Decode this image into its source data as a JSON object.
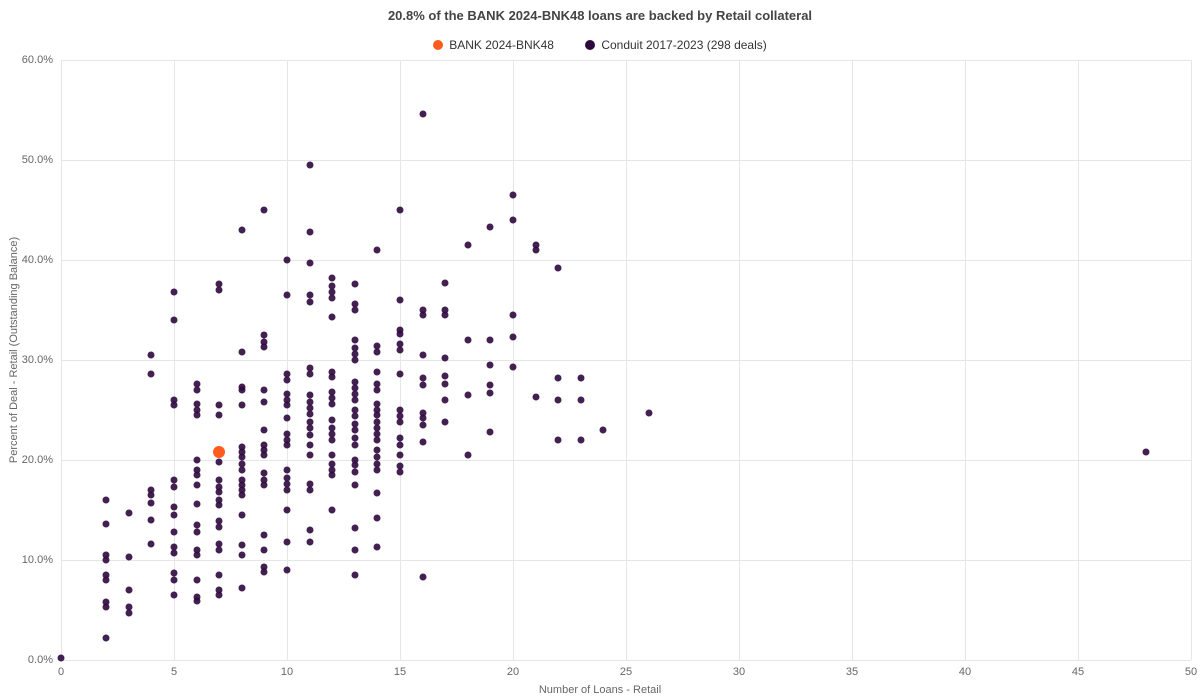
{
  "chart": {
    "type": "scatter",
    "title": "20.8% of the BANK 2024-BNK48 loans are backed by Retail collateral",
    "title_fontsize": 13,
    "background_color": "#ffffff",
    "grid_color": "#e6e6e6",
    "axis_line_color": "#bbbbbb",
    "tick_font_color": "#666666",
    "tick_fontsize": 11,
    "x_axis": {
      "label": "Number of Loans - Retail",
      "min": 0,
      "max": 50,
      "tick_step": 5
    },
    "y_axis": {
      "label": "Percent of Deal - Retail (Outstanding Balance)",
      "min": 0,
      "max": 60,
      "tick_step": 10,
      "tick_suffix": "%",
      "tick_decimals": 1
    },
    "legend": {
      "position": "top-center",
      "items": [
        {
          "label": "BANK 2024-BNK48",
          "color": "#ff5b1f",
          "marker": "circle"
        },
        {
          "label": "Conduit 2017-2023 (298 deals)",
          "color": "#2e093e",
          "marker": "circle"
        }
      ]
    },
    "series": [
      {
        "name": "Conduit 2017-2023 (298 deals)",
        "color": "#2e093e",
        "marker_size": 7,
        "marker_opacity": 0.9,
        "points": [
          [
            0,
            0.2
          ],
          [
            2,
            2.2
          ],
          [
            2,
            5.3
          ],
          [
            2,
            5.8
          ],
          [
            2,
            8.0
          ],
          [
            2,
            8.5
          ],
          [
            2,
            10.0
          ],
          [
            2,
            10.5
          ],
          [
            2,
            13.6
          ],
          [
            2,
            16.0
          ],
          [
            3,
            4.7
          ],
          [
            3,
            5.3
          ],
          [
            3,
            7.0
          ],
          [
            3,
            10.3
          ],
          [
            3,
            14.7
          ],
          [
            4,
            11.6
          ],
          [
            4,
            14.0
          ],
          [
            4,
            15.7
          ],
          [
            4,
            16.5
          ],
          [
            4,
            17.0
          ],
          [
            4,
            28.6
          ],
          [
            4,
            30.5
          ],
          [
            5,
            6.5
          ],
          [
            5,
            8.0
          ],
          [
            5,
            8.7
          ],
          [
            5,
            10.7
          ],
          [
            5,
            11.3
          ],
          [
            5,
            12.8
          ],
          [
            5,
            14.5
          ],
          [
            5,
            15.3
          ],
          [
            5,
            17.3
          ],
          [
            5,
            18.0
          ],
          [
            5,
            25.5
          ],
          [
            5,
            26.0
          ],
          [
            5,
            34.0
          ],
          [
            5,
            36.8
          ],
          [
            6,
            5.9
          ],
          [
            6,
            6.3
          ],
          [
            6,
            8.0
          ],
          [
            6,
            10.5
          ],
          [
            6,
            11.0
          ],
          [
            6,
            12.8
          ],
          [
            6,
            13.5
          ],
          [
            6,
            15.6
          ],
          [
            6,
            17.5
          ],
          [
            6,
            18.5
          ],
          [
            6,
            19.0
          ],
          [
            6,
            20.0
          ],
          [
            6,
            24.5
          ],
          [
            6,
            25.0
          ],
          [
            6,
            25.6
          ],
          [
            6,
            27.0
          ],
          [
            6,
            27.6
          ],
          [
            7,
            6.5
          ],
          [
            7,
            7.0
          ],
          [
            7,
            8.5
          ],
          [
            7,
            11.0
          ],
          [
            7,
            11.6
          ],
          [
            7,
            13.3
          ],
          [
            7,
            13.9
          ],
          [
            7,
            15.5
          ],
          [
            7,
            16.0
          ],
          [
            7,
            16.8
          ],
          [
            7,
            17.3
          ],
          [
            7,
            18.0
          ],
          [
            7,
            19.8
          ],
          [
            7,
            21.0
          ],
          [
            7,
            24.5
          ],
          [
            7,
            25.5
          ],
          [
            7,
            37.0
          ],
          [
            7,
            37.6
          ],
          [
            8,
            7.2
          ],
          [
            8,
            10.5
          ],
          [
            8,
            11.5
          ],
          [
            8,
            14.5
          ],
          [
            8,
            16.5
          ],
          [
            8,
            17.0
          ],
          [
            8,
            17.5
          ],
          [
            8,
            18.0
          ],
          [
            8,
            19.0
          ],
          [
            8,
            19.6
          ],
          [
            8,
            20.3
          ],
          [
            8,
            20.8
          ],
          [
            8,
            21.3
          ],
          [
            8,
            25.5
          ],
          [
            8,
            27.0
          ],
          [
            8,
            27.3
          ],
          [
            8,
            30.8
          ],
          [
            8,
            43.0
          ],
          [
            9,
            8.8
          ],
          [
            9,
            9.3
          ],
          [
            9,
            11.0
          ],
          [
            9,
            12.5
          ],
          [
            9,
            17.5
          ],
          [
            9,
            18.0
          ],
          [
            9,
            18.7
          ],
          [
            9,
            20.5
          ],
          [
            9,
            21.0
          ],
          [
            9,
            21.5
          ],
          [
            9,
            23.0
          ],
          [
            9,
            25.8
          ],
          [
            9,
            27.0
          ],
          [
            9,
            31.3
          ],
          [
            9,
            31.8
          ],
          [
            9,
            32.5
          ],
          [
            9,
            45.0
          ],
          [
            10,
            9.0
          ],
          [
            10,
            11.8
          ],
          [
            10,
            15.0
          ],
          [
            10,
            17.0
          ],
          [
            10,
            17.6
          ],
          [
            10,
            18.2
          ],
          [
            10,
            19.0
          ],
          [
            10,
            21.5
          ],
          [
            10,
            22.0
          ],
          [
            10,
            22.6
          ],
          [
            10,
            24.2
          ],
          [
            10,
            25.5
          ],
          [
            10,
            26.0
          ],
          [
            10,
            26.6
          ],
          [
            10,
            28.0
          ],
          [
            10,
            28.6
          ],
          [
            10,
            36.5
          ],
          [
            10,
            40.0
          ],
          [
            11,
            11.8
          ],
          [
            11,
            13.0
          ],
          [
            11,
            17.0
          ],
          [
            11,
            17.6
          ],
          [
            11,
            20.5
          ],
          [
            11,
            21.5
          ],
          [
            11,
            22.5
          ],
          [
            11,
            23.2
          ],
          [
            11,
            23.8
          ],
          [
            11,
            24.6
          ],
          [
            11,
            25.2
          ],
          [
            11,
            25.8
          ],
          [
            11,
            26.5
          ],
          [
            11,
            28.6
          ],
          [
            11,
            29.2
          ],
          [
            11,
            35.8
          ],
          [
            11,
            36.5
          ],
          [
            11,
            39.7
          ],
          [
            11,
            42.8
          ],
          [
            11,
            49.5
          ],
          [
            12,
            15.0
          ],
          [
            12,
            18.5
          ],
          [
            12,
            19.0
          ],
          [
            12,
            19.6
          ],
          [
            12,
            20.5
          ],
          [
            12,
            22.0
          ],
          [
            12,
            22.6
          ],
          [
            12,
            23.2
          ],
          [
            12,
            24.0
          ],
          [
            12,
            25.6
          ],
          [
            12,
            26.2
          ],
          [
            12,
            26.8
          ],
          [
            12,
            28.3
          ],
          [
            12,
            28.8
          ],
          [
            12,
            34.3
          ],
          [
            12,
            36.2
          ],
          [
            12,
            36.8
          ],
          [
            12,
            37.4
          ],
          [
            12,
            38.2
          ],
          [
            13,
            8.5
          ],
          [
            13,
            11.0
          ],
          [
            13,
            13.2
          ],
          [
            13,
            17.5
          ],
          [
            13,
            18.8
          ],
          [
            13,
            19.5
          ],
          [
            13,
            20.0
          ],
          [
            13,
            21.5
          ],
          [
            13,
            22.2
          ],
          [
            13,
            23.0
          ],
          [
            13,
            23.6
          ],
          [
            13,
            24.4
          ],
          [
            13,
            25.0
          ],
          [
            13,
            26.0
          ],
          [
            13,
            26.6
          ],
          [
            13,
            27.2
          ],
          [
            13,
            27.8
          ],
          [
            13,
            30.0
          ],
          [
            13,
            30.6
          ],
          [
            13,
            31.2
          ],
          [
            13,
            32.0
          ],
          [
            13,
            35.0
          ],
          [
            13,
            35.6
          ],
          [
            13,
            37.6
          ],
          [
            14,
            11.3
          ],
          [
            14,
            14.2
          ],
          [
            14,
            16.7
          ],
          [
            14,
            19.0
          ],
          [
            14,
            19.6
          ],
          [
            14,
            20.3
          ],
          [
            14,
            21.0
          ],
          [
            14,
            22.0
          ],
          [
            14,
            22.6
          ],
          [
            14,
            23.2
          ],
          [
            14,
            23.8
          ],
          [
            14,
            24.5
          ],
          [
            14,
            25.0
          ],
          [
            14,
            25.6
          ],
          [
            14,
            27.0
          ],
          [
            14,
            27.6
          ],
          [
            14,
            28.8
          ],
          [
            14,
            30.8
          ],
          [
            14,
            31.4
          ],
          [
            14,
            41.0
          ],
          [
            15,
            18.8
          ],
          [
            15,
            19.4
          ],
          [
            15,
            20.5
          ],
          [
            15,
            21.5
          ],
          [
            15,
            22.2
          ],
          [
            15,
            23.8
          ],
          [
            15,
            24.4
          ],
          [
            15,
            25.0
          ],
          [
            15,
            28.6
          ],
          [
            15,
            31.0
          ],
          [
            15,
            31.6
          ],
          [
            15,
            32.6
          ],
          [
            15,
            33.0
          ],
          [
            15,
            36.0
          ],
          [
            15,
            45.0
          ],
          [
            16,
            8.3
          ],
          [
            16,
            21.8
          ],
          [
            16,
            23.5
          ],
          [
            16,
            24.2
          ],
          [
            16,
            24.7
          ],
          [
            16,
            27.5
          ],
          [
            16,
            28.2
          ],
          [
            16,
            30.5
          ],
          [
            16,
            34.5
          ],
          [
            16,
            35.0
          ],
          [
            16,
            54.6
          ],
          [
            17,
            23.8
          ],
          [
            17,
            26.0
          ],
          [
            17,
            27.6
          ],
          [
            17,
            28.4
          ],
          [
            17,
            30.2
          ],
          [
            17,
            34.5
          ],
          [
            17,
            35.0
          ],
          [
            17,
            37.7
          ],
          [
            18,
            20.5
          ],
          [
            18,
            26.5
          ],
          [
            18,
            32.0
          ],
          [
            18,
            41.5
          ],
          [
            19,
            22.8
          ],
          [
            19,
            26.7
          ],
          [
            19,
            27.5
          ],
          [
            19,
            29.5
          ],
          [
            19,
            32.0
          ],
          [
            19,
            43.3
          ],
          [
            20,
            29.3
          ],
          [
            20,
            32.3
          ],
          [
            20,
            34.5
          ],
          [
            20,
            44.0
          ],
          [
            20,
            46.5
          ],
          [
            21,
            26.3
          ],
          [
            21,
            41.0
          ],
          [
            21,
            41.5
          ],
          [
            22,
            22.0
          ],
          [
            22,
            26.0
          ],
          [
            22,
            28.2
          ],
          [
            22,
            39.2
          ],
          [
            23,
            22.0
          ],
          [
            23,
            26.0
          ],
          [
            23,
            28.2
          ],
          [
            24,
            23.0
          ],
          [
            26,
            24.7
          ],
          [
            48,
            20.8
          ]
        ]
      },
      {
        "name": "BANK 2024-BNK48",
        "color": "#ff5b1f",
        "marker_size": 12,
        "marker_opacity": 1.0,
        "points": [
          [
            7,
            20.8
          ]
        ]
      }
    ]
  }
}
